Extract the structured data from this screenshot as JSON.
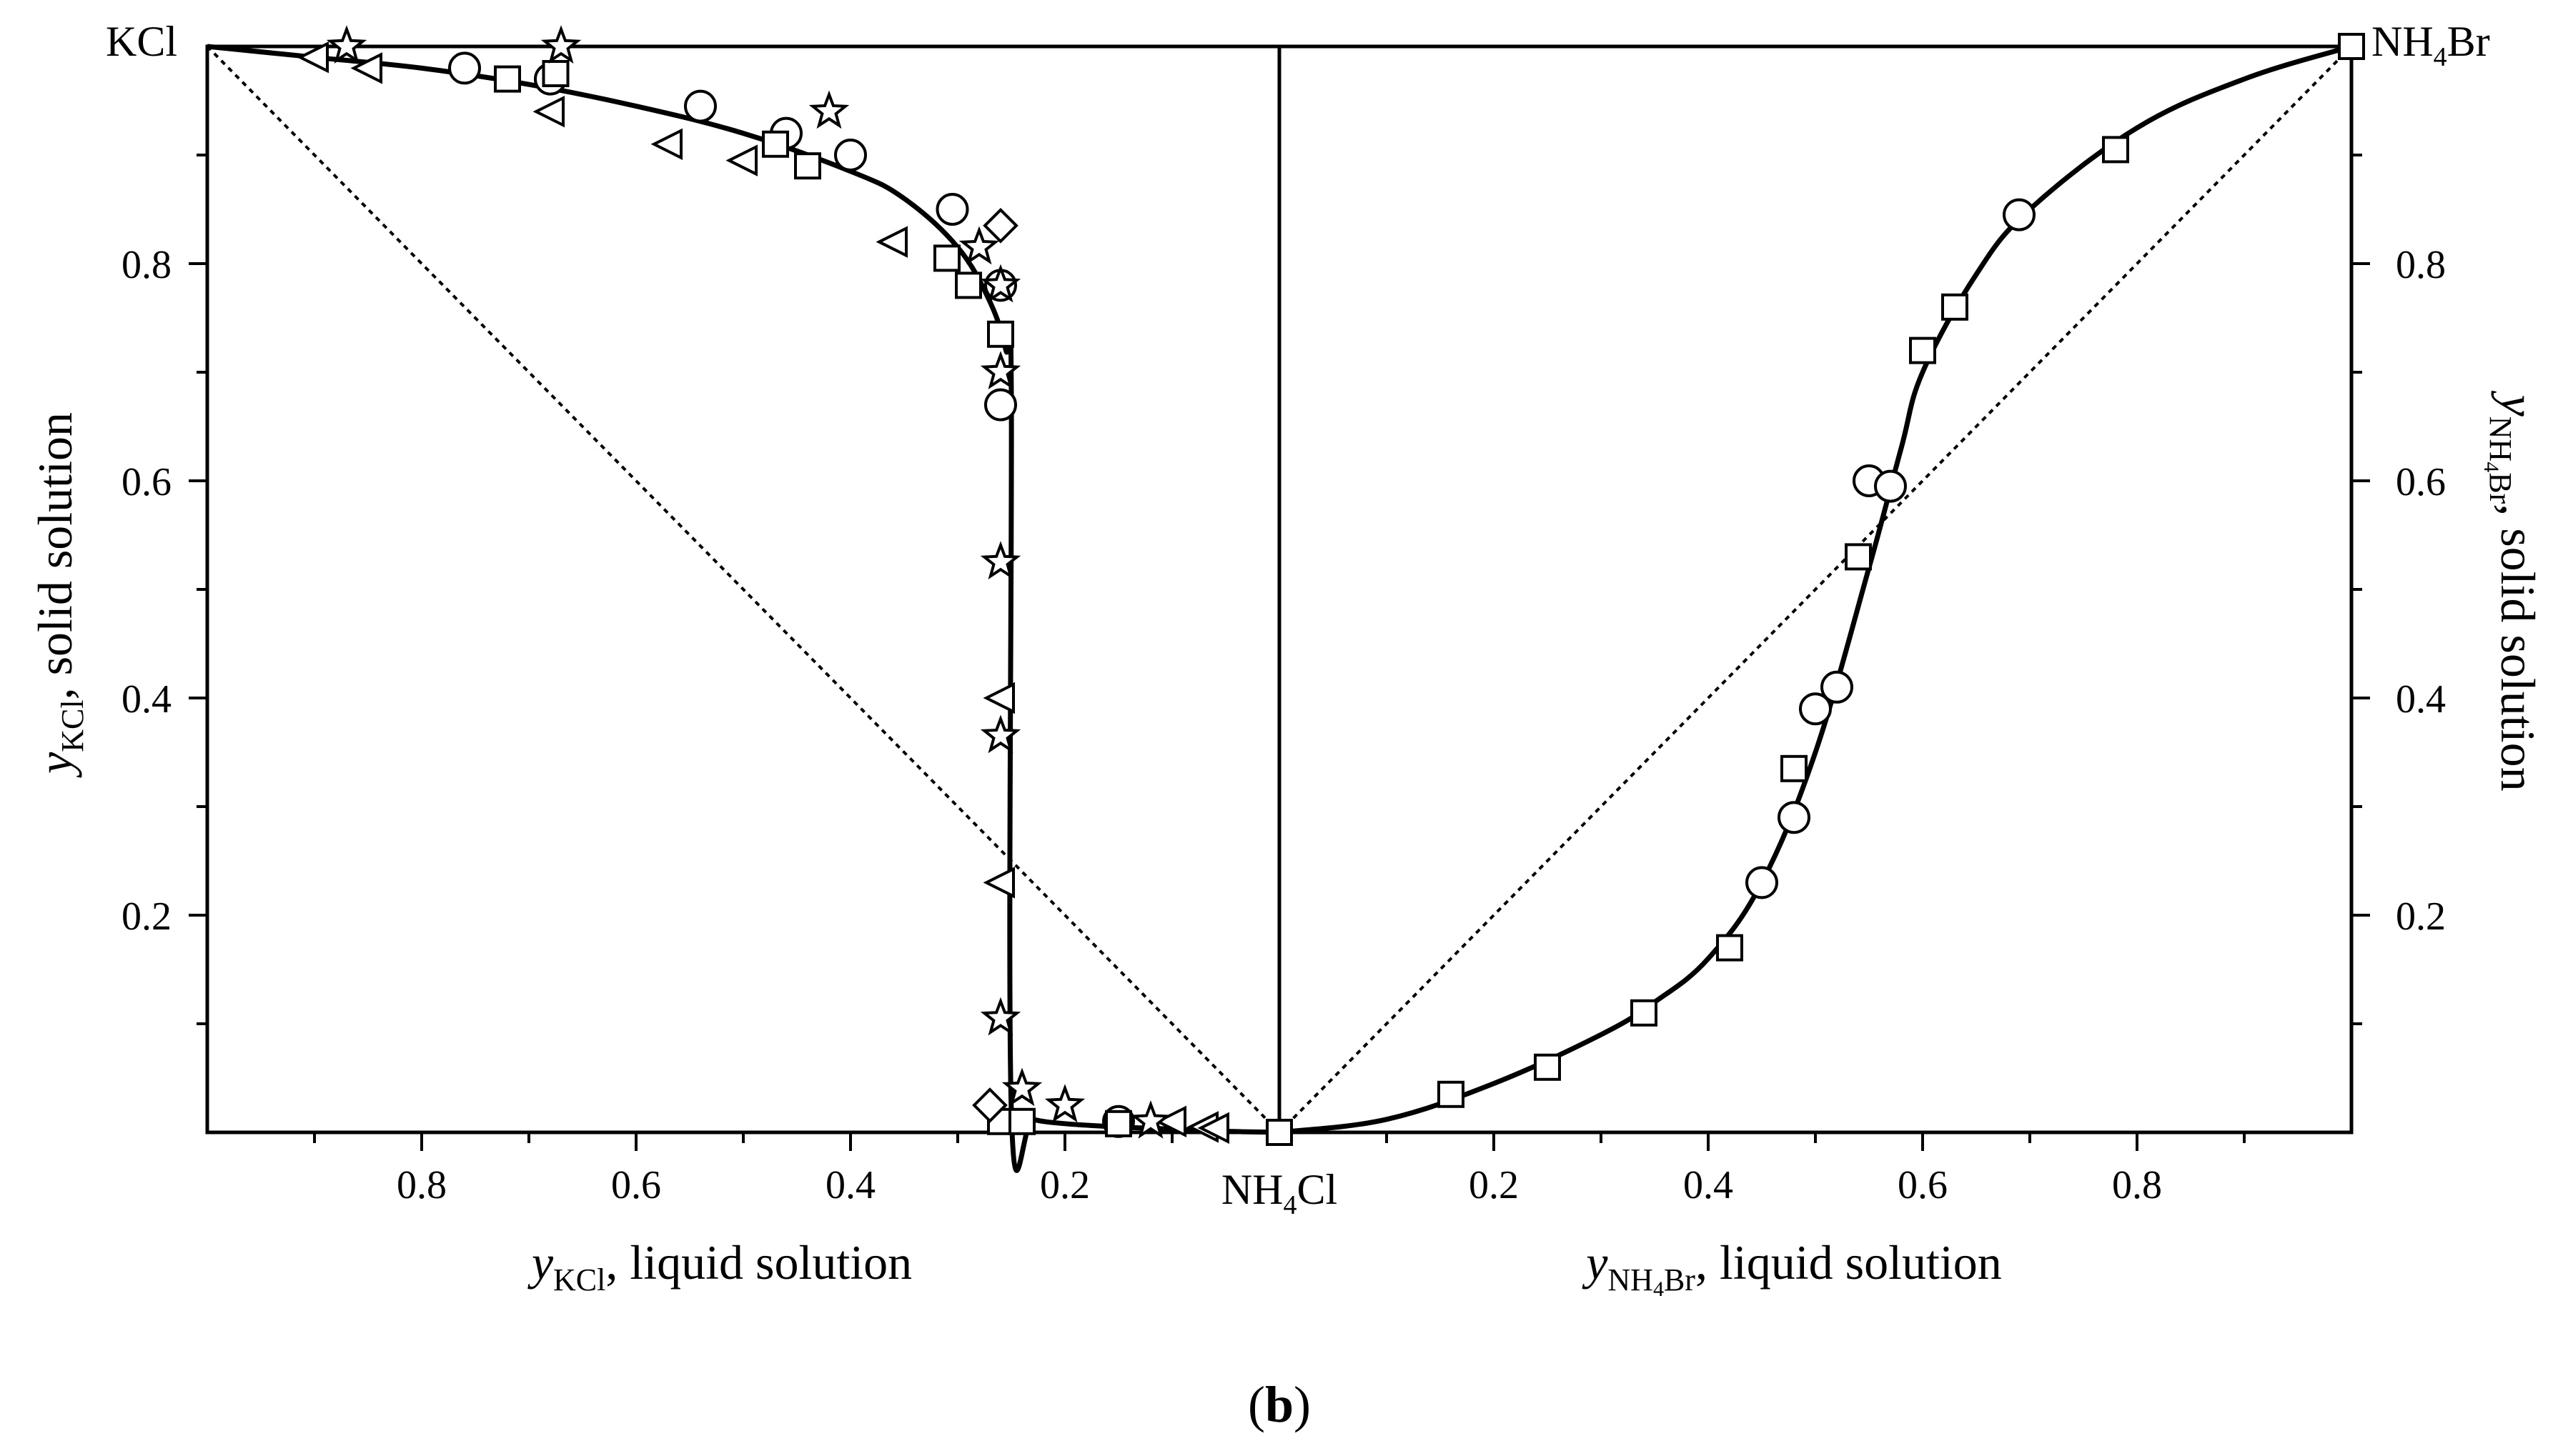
{
  "figure": {
    "panel_label_open": "(",
    "panel_label_letter": "b",
    "panel_label_close": ")"
  },
  "corner_labels": {
    "top_left": "KCl",
    "top_right": "NH",
    "top_right_sub": "4",
    "top_right_tail": "Br",
    "bottom_center": "NH",
    "bottom_center_sub": "4",
    "bottom_center_tail": "Cl"
  },
  "chart_data": {
    "type": "scatter",
    "title": "",
    "left_panel": {
      "xlabel_var": "y",
      "xlabel_sub": "KCl",
      "xlabel_text": ", liquid solution",
      "ylabel_var": "y",
      "ylabel_sub": "KCl",
      "ylabel_text": ", solid solution",
      "x_direction": "reversed",
      "xlim": [
        0,
        1
      ],
      "ylim": [
        0,
        1
      ],
      "x_ticks": [
        "0.2",
        "0.4",
        "0.6",
        "0.8"
      ],
      "y_ticks": [
        "0.2",
        "0.4",
        "0.6",
        "0.8"
      ],
      "series": [
        {
          "name": "circles",
          "marker": "circle",
          "points": [
            [
              0.76,
              0.98
            ],
            [
              0.68,
              0.97
            ],
            [
              0.54,
              0.945
            ],
            [
              0.46,
              0.92
            ],
            [
              0.4,
              0.9
            ],
            [
              0.305,
              0.85
            ],
            [
              0.26,
              0.78
            ],
            [
              0.26,
              0.67
            ],
            [
              0.15,
              0.01
            ]
          ]
        },
        {
          "name": "squares",
          "marker": "square",
          "points": [
            [
              0.72,
              0.97
            ],
            [
              0.675,
              0.975
            ],
            [
              0.47,
              0.91
            ],
            [
              0.44,
              0.89
            ],
            [
              0.31,
              0.805
            ],
            [
              0.29,
              0.78
            ],
            [
              0.26,
              0.735
            ],
            [
              0.26,
              0.01
            ],
            [
              0.24,
              0.01
            ],
            [
              0.15,
              0.008
            ],
            [
              0.0,
              0.0
            ]
          ]
        },
        {
          "name": "triangles",
          "marker": "triangle-left",
          "points": [
            [
              0.9,
              0.99
            ],
            [
              0.85,
              0.98
            ],
            [
              0.68,
              0.94
            ],
            [
              0.57,
              0.91
            ],
            [
              0.5,
              0.895
            ],
            [
              0.36,
              0.82
            ],
            [
              0.26,
              0.4
            ],
            [
              0.26,
              0.23
            ],
            [
              0.1,
              0.01
            ],
            [
              0.07,
              0.005
            ],
            [
              0.06,
              0.004
            ]
          ]
        },
        {
          "name": "stars",
          "marker": "star",
          "points": [
            [
              0.87,
              1.0
            ],
            [
              0.67,
              1.0
            ],
            [
              0.42,
              0.94
            ],
            [
              0.28,
              0.815
            ],
            [
              0.26,
              0.78
            ],
            [
              0.26,
              0.7
            ],
            [
              0.26,
              0.525
            ],
            [
              0.26,
              0.365
            ],
            [
              0.26,
              0.105
            ],
            [
              0.24,
              0.04
            ],
            [
              0.2,
              0.025
            ],
            [
              0.12,
              0.01
            ]
          ]
        },
        {
          "name": "diamonds",
          "marker": "diamond",
          "points": [
            [
              0.26,
              0.835
            ],
            [
              0.27,
              0.025
            ]
          ]
        }
      ],
      "fitted_curve": {
        "name": "fit",
        "points": [
          [
            1.0,
            1.0
          ],
          [
            0.9,
            0.99
          ],
          [
            0.8,
            0.98
          ],
          [
            0.7,
            0.965
          ],
          [
            0.6,
            0.945
          ],
          [
            0.5,
            0.92
          ],
          [
            0.4,
            0.885
          ],
          [
            0.35,
            0.86
          ],
          [
            0.3,
            0.815
          ],
          [
            0.27,
            0.765
          ],
          [
            0.255,
            0.72
          ],
          [
            0.25,
            0.68
          ],
          [
            0.25,
            0.02
          ],
          [
            0.23,
            0.012
          ],
          [
            0.2,
            0.008
          ],
          [
            0.15,
            0.005
          ],
          [
            0.1,
            0.003
          ],
          [
            0.05,
            0.001
          ],
          [
            0.0,
            0.0
          ]
        ]
      },
      "diagonal": {
        "name": "ideal",
        "style": "dotted",
        "points": [
          [
            1.0,
            1.0
          ],
          [
            0.0,
            0.0
          ]
        ]
      }
    },
    "right_panel": {
      "xlabel_var": "y",
      "xlabel_sub": "NH",
      "xlabel_sub2": "4",
      "xlabel_sub3": "Br",
      "xlabel_text": ", liquid solution",
      "ylabel_var": "y",
      "ylabel_sub": "NH",
      "ylabel_sub2": "4",
      "ylabel_sub3": "Br",
      "ylabel_text": ", solid solution",
      "xlim": [
        0,
        1
      ],
      "ylim": [
        0,
        1
      ],
      "x_ticks": [
        "0.2",
        "0.4",
        "0.6",
        "0.8"
      ],
      "y_ticks": [
        "0.2",
        "0.4",
        "0.6",
        "0.8"
      ],
      "series": [
        {
          "name": "circles",
          "marker": "circle",
          "points": [
            [
              0.45,
              0.23
            ],
            [
              0.48,
              0.29
            ],
            [
              0.5,
              0.39
            ],
            [
              0.52,
              0.41
            ],
            [
              0.55,
              0.6
            ],
            [
              0.57,
              0.595
            ],
            [
              0.69,
              0.845
            ]
          ]
        },
        {
          "name": "squares",
          "marker": "square",
          "points": [
            [
              0.0,
              0.0
            ],
            [
              0.16,
              0.035
            ],
            [
              0.25,
              0.06
            ],
            [
              0.34,
              0.11
            ],
            [
              0.42,
              0.17
            ],
            [
              0.48,
              0.335
            ],
            [
              0.54,
              0.53
            ],
            [
              0.6,
              0.72
            ],
            [
              0.63,
              0.76
            ],
            [
              0.78,
              0.905
            ],
            [
              1.0,
              1.0
            ]
          ]
        }
      ],
      "fitted_curve": {
        "name": "fit",
        "points": [
          [
            0.0,
            0.0
          ],
          [
            0.1,
            0.012
          ],
          [
            0.2,
            0.045
          ],
          [
            0.3,
            0.09
          ],
          [
            0.35,
            0.12
          ],
          [
            0.4,
            0.16
          ],
          [
            0.45,
            0.23
          ],
          [
            0.5,
            0.35
          ],
          [
            0.55,
            0.52
          ],
          [
            0.58,
            0.63
          ],
          [
            0.6,
            0.7
          ],
          [
            0.65,
            0.79
          ],
          [
            0.7,
            0.85
          ],
          [
            0.8,
            0.925
          ],
          [
            0.9,
            0.97
          ],
          [
            1.0,
            1.0
          ]
        ]
      },
      "diagonal": {
        "name": "ideal",
        "style": "dotted",
        "points": [
          [
            0.0,
            0.0
          ],
          [
            1.0,
            1.0
          ]
        ]
      }
    }
  }
}
